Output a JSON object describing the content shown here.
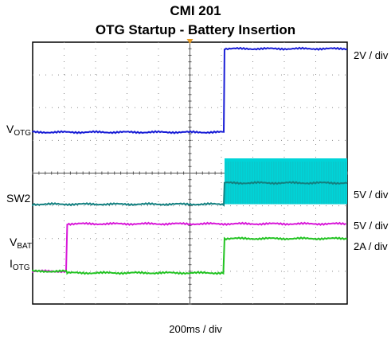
{
  "title": "CMI 201",
  "subtitle": "OTG Startup - Battery Insertion",
  "x_scale_label": "200ms / div",
  "channels": {
    "votg": {
      "name": "V",
      "sub": "OTG",
      "scale": "2V / div",
      "color": "#1a1fd6"
    },
    "sw2": {
      "name": "SW2",
      "scale": "5V / div",
      "color": "#138080",
      "fill_color": "#00d4d8"
    },
    "vbat": {
      "name": "V",
      "sub": "BAT",
      "scale": "5V / div",
      "color": "#d81ad8"
    },
    "iotg": {
      "name": "I",
      "sub": "OTG",
      "scale": "2A / div",
      "color": "#22c322"
    }
  },
  "chart_data": {
    "type": "line",
    "title": "CMI 201",
    "subtitle": "OTG Startup - Battery Insertion",
    "xlabel": "200ms / div",
    "x_divisions": 10,
    "y_divisions": 8,
    "x_unit": "div",
    "xlim": [
      0,
      10
    ],
    "ylim": [
      0,
      8
    ],
    "grid": true,
    "trigger_marker_x": 5,
    "series": [
      {
        "name": "VOTG",
        "scale": "2V / div",
        "x": [
          0,
          6.1,
          6.1,
          10
        ],
        "y": [
          5.25,
          5.25,
          7.8,
          7.8
        ]
      },
      {
        "name": "SW2",
        "scale": "5V / div",
        "x": [
          0,
          6.1,
          6.1,
          10
        ],
        "y": [
          3.05,
          3.05,
          3.7,
          3.7
        ],
        "switching_band": [
          3.05,
          4.45
        ]
      },
      {
        "name": "VBAT",
        "scale": "5V / div",
        "x": [
          0,
          1.1,
          1.1,
          10
        ],
        "y": [
          1.0,
          1.0,
          2.45,
          2.45
        ]
      },
      {
        "name": "IOTG",
        "scale": "2A / div",
        "x": [
          0,
          1.1,
          1.1,
          6.1,
          6.1,
          10
        ],
        "y": [
          1.0,
          1.0,
          0.95,
          0.95,
          2.0,
          2.0
        ]
      }
    ]
  }
}
